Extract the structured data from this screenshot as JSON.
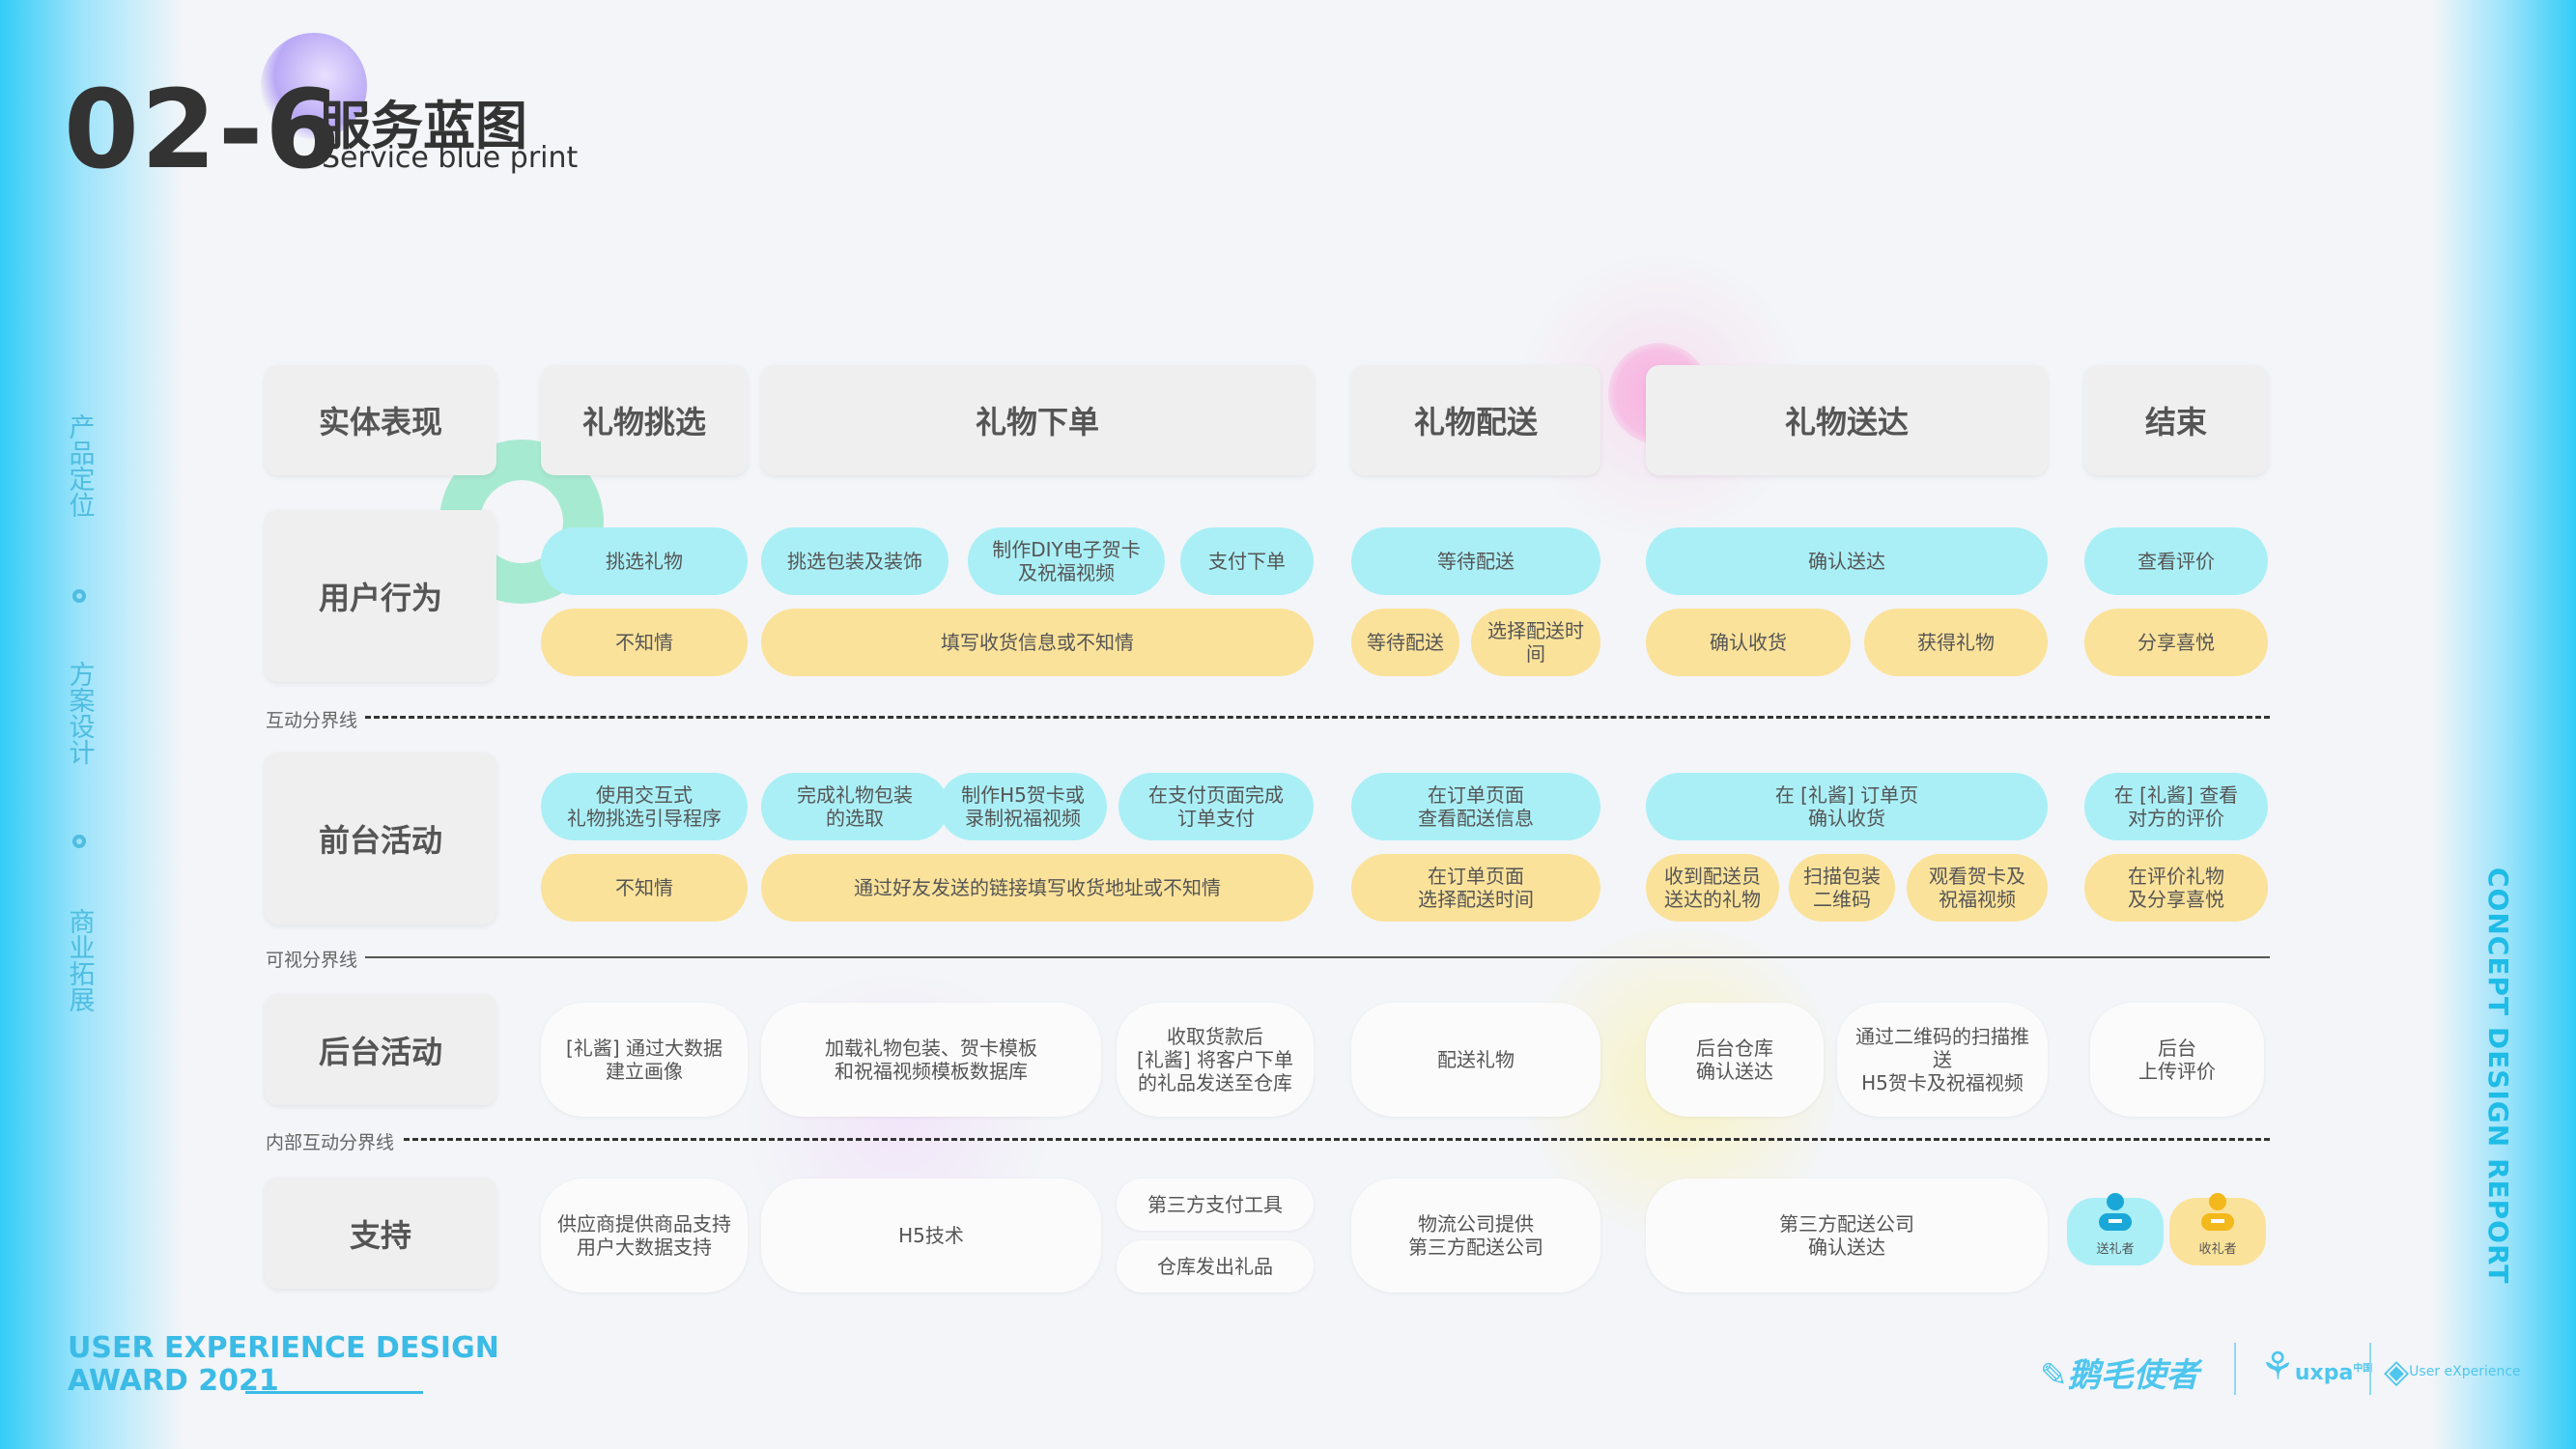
{
  "header": {
    "number": "02-6",
    "title_cn": "服务蓝图",
    "title_en": "Service blue print"
  },
  "left_nav": {
    "items": [
      "产品定位",
      "方案设计",
      "商业拓展"
    ]
  },
  "right_label": "CONCEPT DESIGN REPORT",
  "award": {
    "line1": "USER EXPERIENCE DESIGN",
    "line2": "AWARD 2021"
  },
  "colors": {
    "cyan": "#aaeff6",
    "yellow": "#fbe29a",
    "edge": "#33ccf6"
  },
  "stages": [
    "实体表现",
    "礼物挑选",
    "礼物下单",
    "礼物配送",
    "礼物送达",
    "结束"
  ],
  "lanes": [
    "用户行为",
    "前台活动",
    "后台活动",
    "支持"
  ],
  "separators": {
    "interaction": "互动分界线",
    "visible": "可视分界线",
    "internal": "内部互动分界线"
  },
  "user_actions": {
    "row1": [
      "挑选礼物",
      "挑选包装及装饰",
      "制作DIY电子贺卡\n及祝福视频",
      "支付下单",
      "等待配送",
      "确认送达",
      "查看评价"
    ],
    "row2": [
      "不知情",
      "填写收货信息或不知情",
      "等待配送",
      "选择配送时间",
      "确认收货",
      "获得礼物",
      "分享喜悦"
    ]
  },
  "frontstage": {
    "row1": [
      "使用交互式\n礼物挑选引导程序",
      "完成礼物包装\n的选取",
      "制作H5贺卡或\n录制祝福视频",
      "在支付页面完成\n订单支付",
      "在订单页面\n查看配送信息",
      "在 [礼酱] 订单页\n确认收货",
      "在 [礼酱] 查看\n对方的评价"
    ],
    "row2": [
      "不知情",
      "通过好友发送的链接填写收货地址或不知情",
      "在订单页面\n选择配送时间",
      "收到配送员\n送达的礼物",
      "扫描包装\n二维码",
      "观看贺卡及\n祝福视频",
      "在评价礼物\n及分享喜悦"
    ]
  },
  "backstage": [
    "[礼酱] 通过大数据\n建立画像",
    "加载礼物包装、贺卡模板\n和祝福视频模板数据库",
    "收取货款后\n[礼酱] 将客户下单\n的礼品发送至仓库",
    "配送礼物",
    "后台仓库\n确认送达",
    "通过二维码的扫描推送\nH5贺卡及祝福视频",
    "后台\n上传评价"
  ],
  "support": [
    "供应商提供商品支持\n用户大数据支持",
    "H5技术",
    "第三方支付工具",
    "仓库发出礼品",
    "物流公司提供\n第三方配送公司",
    "第三方配送公司\n确认送达"
  ],
  "persona_tags": [
    "送礼者",
    "收礼者"
  ],
  "footer": {
    "logo1": "鹅毛使者",
    "logo2": "uxpa",
    "logo2_sup": "中国",
    "logo3": "User eXperience"
  }
}
